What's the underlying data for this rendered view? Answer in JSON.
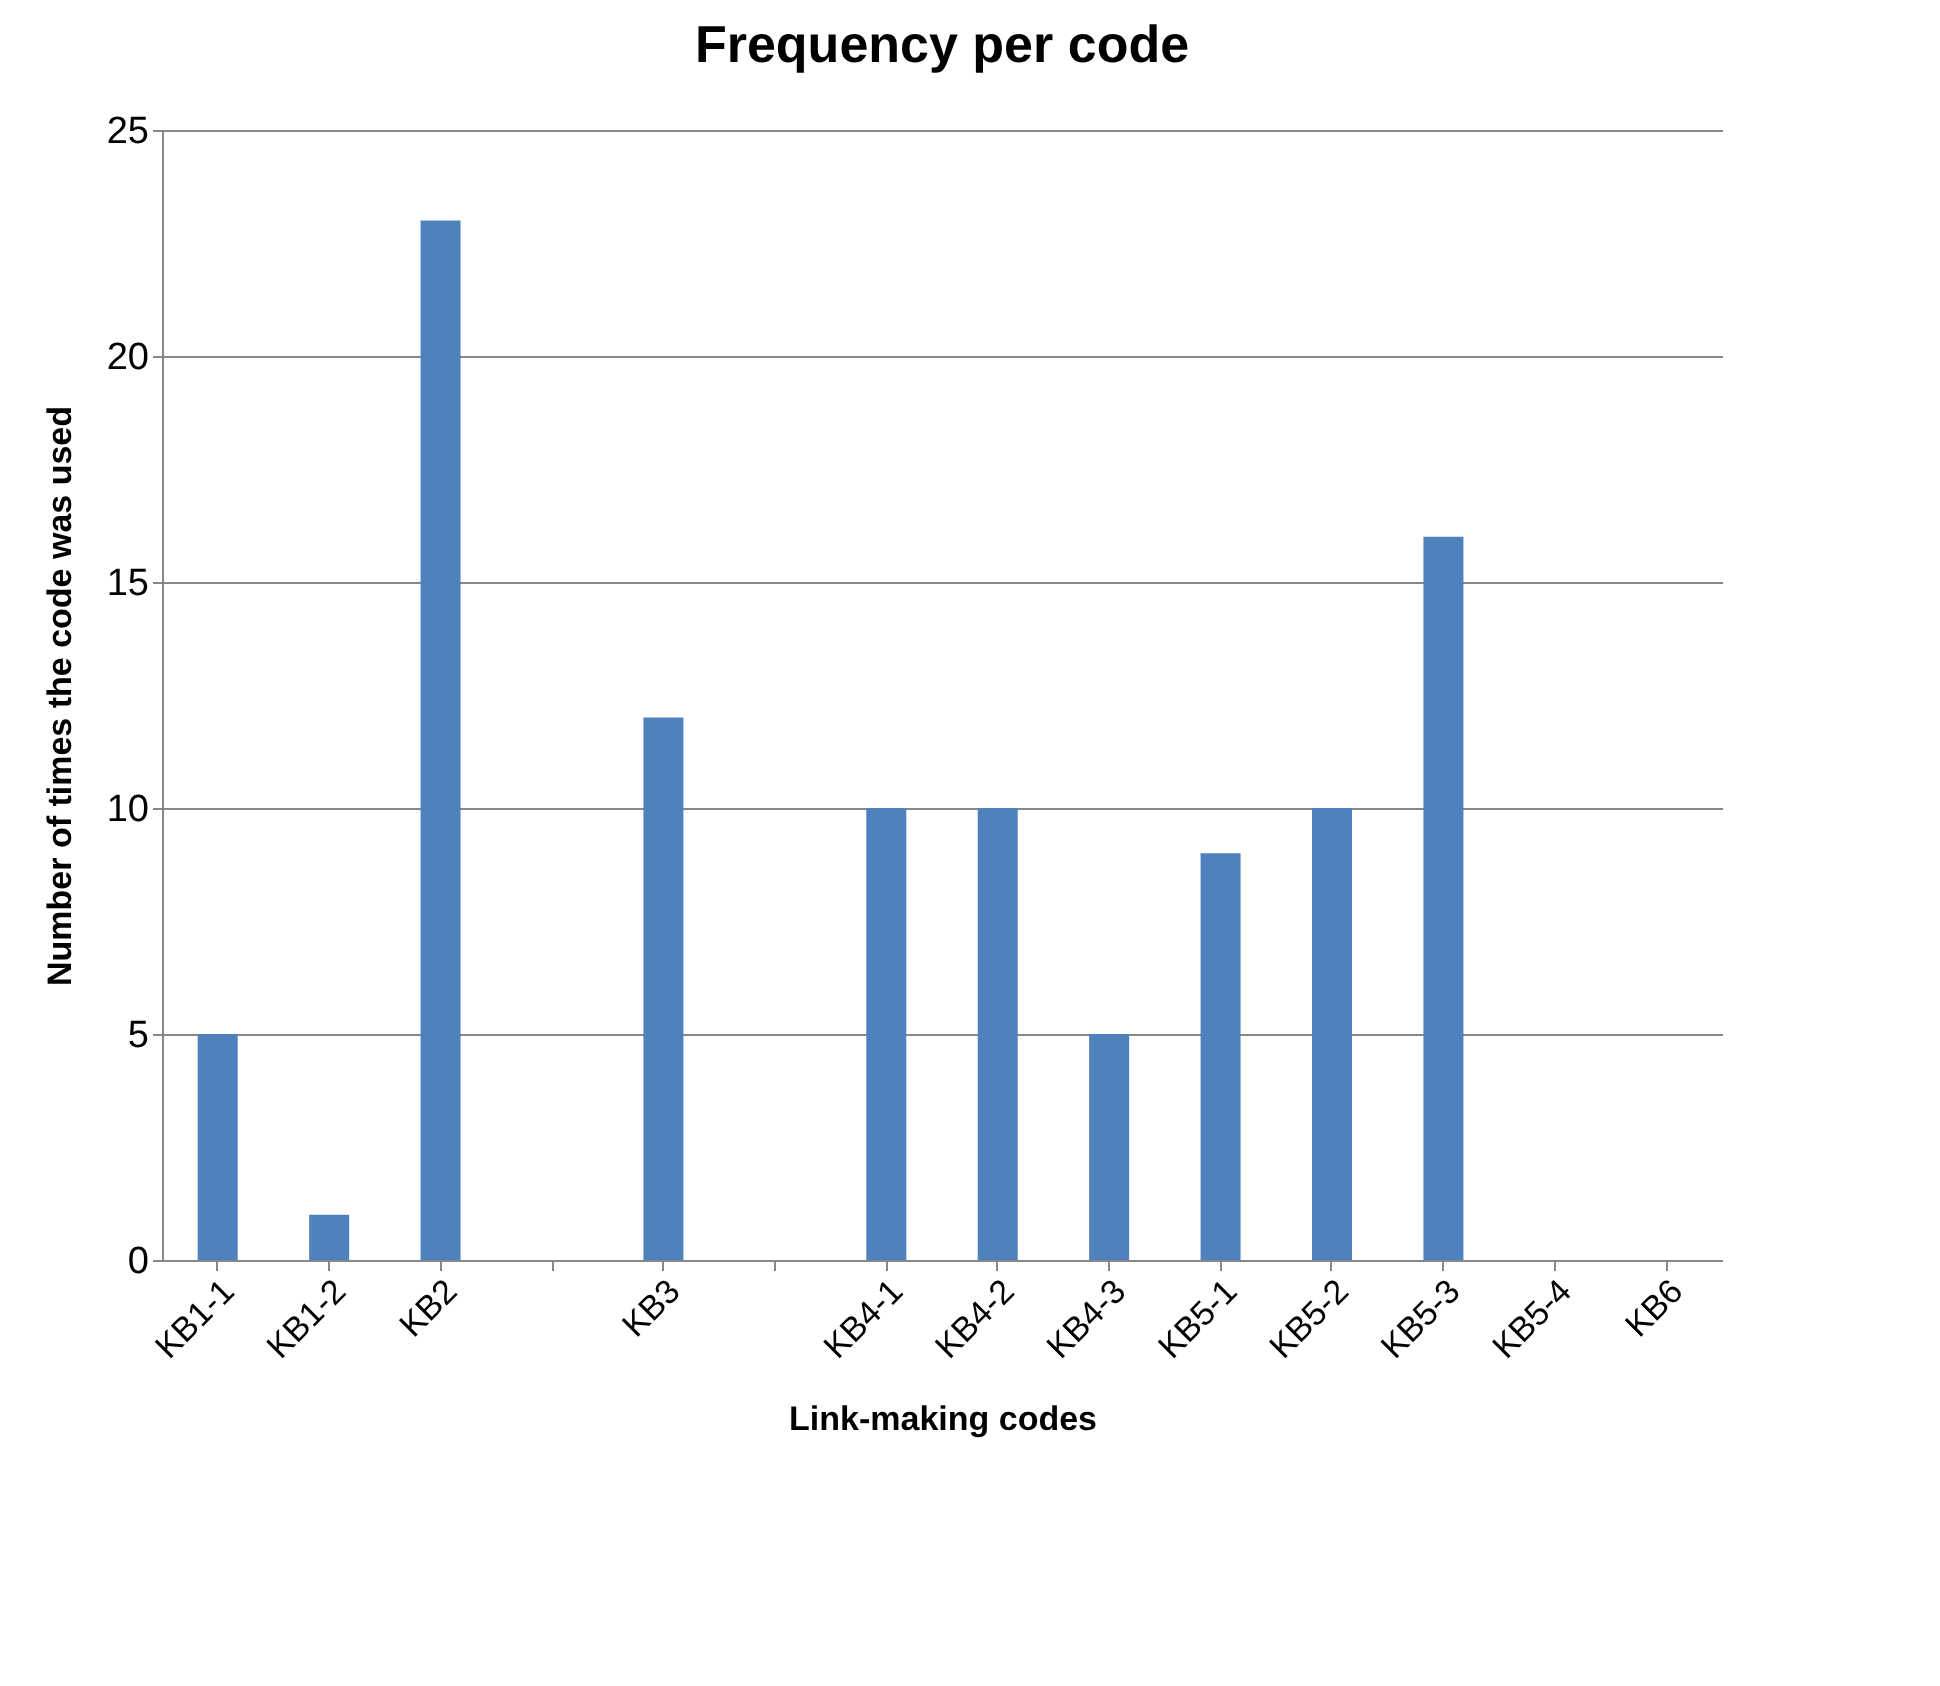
{
  "chart_data": {
    "type": "bar",
    "title": "Frequency per code",
    "xlabel": "Link-making codes",
    "ylabel": "Number of times the code was used",
    "categories": [
      "KB1-1",
      "KB1-2",
      "KB2",
      null,
      "KB3",
      null,
      "KB4-1",
      "KB4-2",
      "KB4-3",
      "KB5-1",
      "KB5-2",
      "KB5-3",
      "KB5-4",
      "KB6"
    ],
    "values": [
      5,
      1,
      23,
      null,
      12,
      null,
      10,
      10,
      5,
      9,
      10,
      16,
      0,
      0
    ],
    "color": "#4f81bd",
    "ylim": [
      0,
      25
    ],
    "yticks": [
      0,
      5,
      10,
      15,
      20,
      25
    ],
    "grid": "y"
  }
}
